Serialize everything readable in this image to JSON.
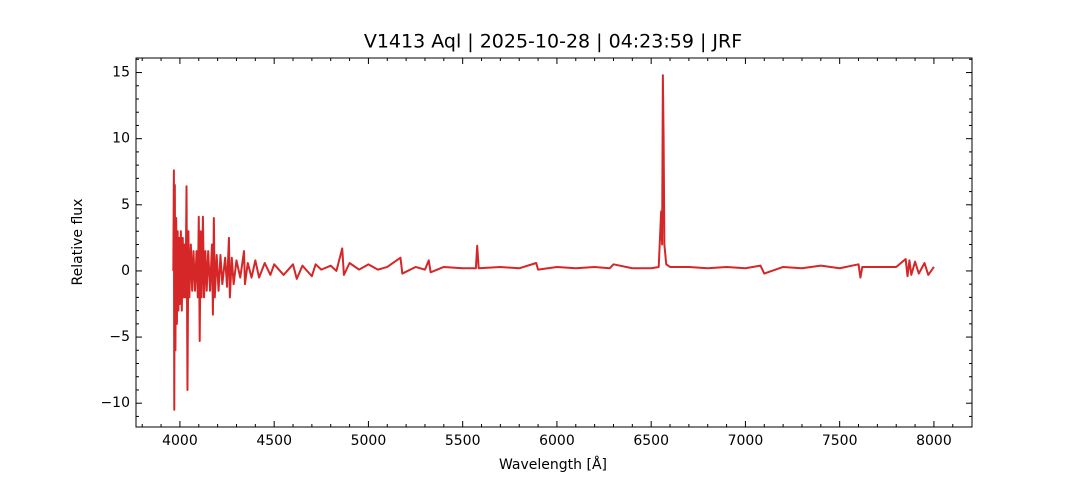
{
  "chart_data": {
    "type": "line",
    "title": "V1413 Aql | 2025-10-28 | 04:23:59 | JRF",
    "x_label": "Wavelength [Å]",
    "y_label": "Relative flux",
    "color": "#d62728",
    "xlim": [
      3767,
      8202
    ],
    "ylim": [
      -11.8,
      16.1
    ],
    "xticks": [
      4000,
      4500,
      5000,
      5500,
      6000,
      6500,
      7000,
      7500,
      8000
    ],
    "yticks": [
      {
        "value": -10,
        "label": "−10"
      },
      {
        "value": -5,
        "label": "−5"
      },
      0,
      5,
      10,
      15
    ],
    "xminorticks": [
      3800,
      3900,
      4100,
      4200,
      4300,
      4400,
      4600,
      4700,
      4800,
      4900,
      5100,
      5200,
      5300,
      5400,
      5600,
      5700,
      5800,
      5900,
      6100,
      6200,
      6300,
      6400,
      6600,
      6700,
      6800,
      6900,
      7100,
      7200,
      7300,
      7400,
      7600,
      7700,
      7800,
      7900,
      8100
    ],
    "yminorticks": [
      -11,
      -9,
      -8,
      -7,
      -6,
      -4,
      -3,
      -2,
      -1,
      1,
      2,
      3,
      4,
      6,
      7,
      8,
      9,
      11,
      12,
      13,
      14,
      16
    ],
    "x": [
      3965,
      3968,
      3970,
      3973,
      3976,
      3980,
      3984,
      3988,
      3992,
      3996,
      4000,
      4005,
      4010,
      4015,
      4020,
      4025,
      4030,
      4035,
      4040,
      4045,
      4050,
      4058,
      4065,
      4072,
      4080,
      4088,
      4095,
      4100,
      4105,
      4110,
      4115,
      4122,
      4128,
      4135,
      4142,
      4150,
      4160,
      4170,
      4175,
      4180,
      4185,
      4195,
      4205,
      4215,
      4225,
      4240,
      4250,
      4260,
      4265,
      4275,
      4285,
      4300,
      4320,
      4340,
      4345,
      4360,
      4380,
      4400,
      4420,
      4450,
      4480,
      4500,
      4550,
      4600,
      4620,
      4650,
      4700,
      4720,
      4750,
      4800,
      4830,
      4861,
      4870,
      4900,
      4950,
      5000,
      5050,
      5100,
      5170,
      5180,
      5250,
      5300,
      5320,
      5330,
      5400,
      5500,
      5570,
      5577,
      5585,
      5700,
      5800,
      5890,
      5900,
      6000,
      6100,
      6200,
      6280,
      6300,
      6400,
      6500,
      6540,
      6553,
      6558,
      6562,
      6566,
      6570,
      6580,
      6600,
      6700,
      6800,
      6900,
      7000,
      7080,
      7100,
      7200,
      7300,
      7400,
      7500,
      7600,
      7610,
      7620,
      7700,
      7800,
      7850,
      7860,
      7870,
      7880,
      7900,
      7920,
      7950,
      7970,
      8000
    ],
    "values": [
      0,
      7.6,
      -10.5,
      6.5,
      -6,
      4,
      -4,
      3,
      -3,
      2.5,
      -2.5,
      3,
      -3,
      2.5,
      -2,
      2,
      -2,
      6.4,
      -9,
      3,
      -2,
      2,
      -1.5,
      1.5,
      -1.5,
      1.5,
      -2,
      4.1,
      -5.3,
      3,
      -2,
      4.1,
      -2,
      1.5,
      -1.5,
      1.5,
      -1.5,
      2,
      -3.3,
      4,
      -2,
      1.2,
      -1.5,
      1.2,
      -1,
      1,
      -1.2,
      2.5,
      -2,
      1,
      -1,
      0.8,
      -0.5,
      1.5,
      -1,
      0.6,
      -0.5,
      0.8,
      -0.5,
      0.6,
      -0.3,
      0.5,
      -0.3,
      0.5,
      -0.6,
      0.4,
      -0.4,
      0.5,
      0.1,
      0.4,
      0,
      1.7,
      -0.3,
      0.6,
      0.1,
      0.5,
      0.1,
      0.3,
      1,
      -0.2,
      0.3,
      0.1,
      0.8,
      -0.1,
      0.3,
      0.2,
      0.2,
      1.9,
      0.2,
      0.3,
      0.2,
      0.6,
      0.1,
      0.3,
      0.2,
      0.3,
      0.2,
      0.5,
      0.2,
      0.2,
      0.3,
      4.5,
      2,
      14.8,
      10,
      2,
      0.5,
      0.3,
      0.3,
      0.2,
      0.3,
      0.2,
      0.4,
      -0.2,
      0.3,
      0.2,
      0.4,
      0.2,
      0.5,
      -0.5,
      0.3,
      0.3,
      0.3,
      0.9,
      -0.4,
      0.8,
      -0.3,
      0.7,
      -0.2,
      0.6,
      -0.3,
      0.3
    ]
  }
}
